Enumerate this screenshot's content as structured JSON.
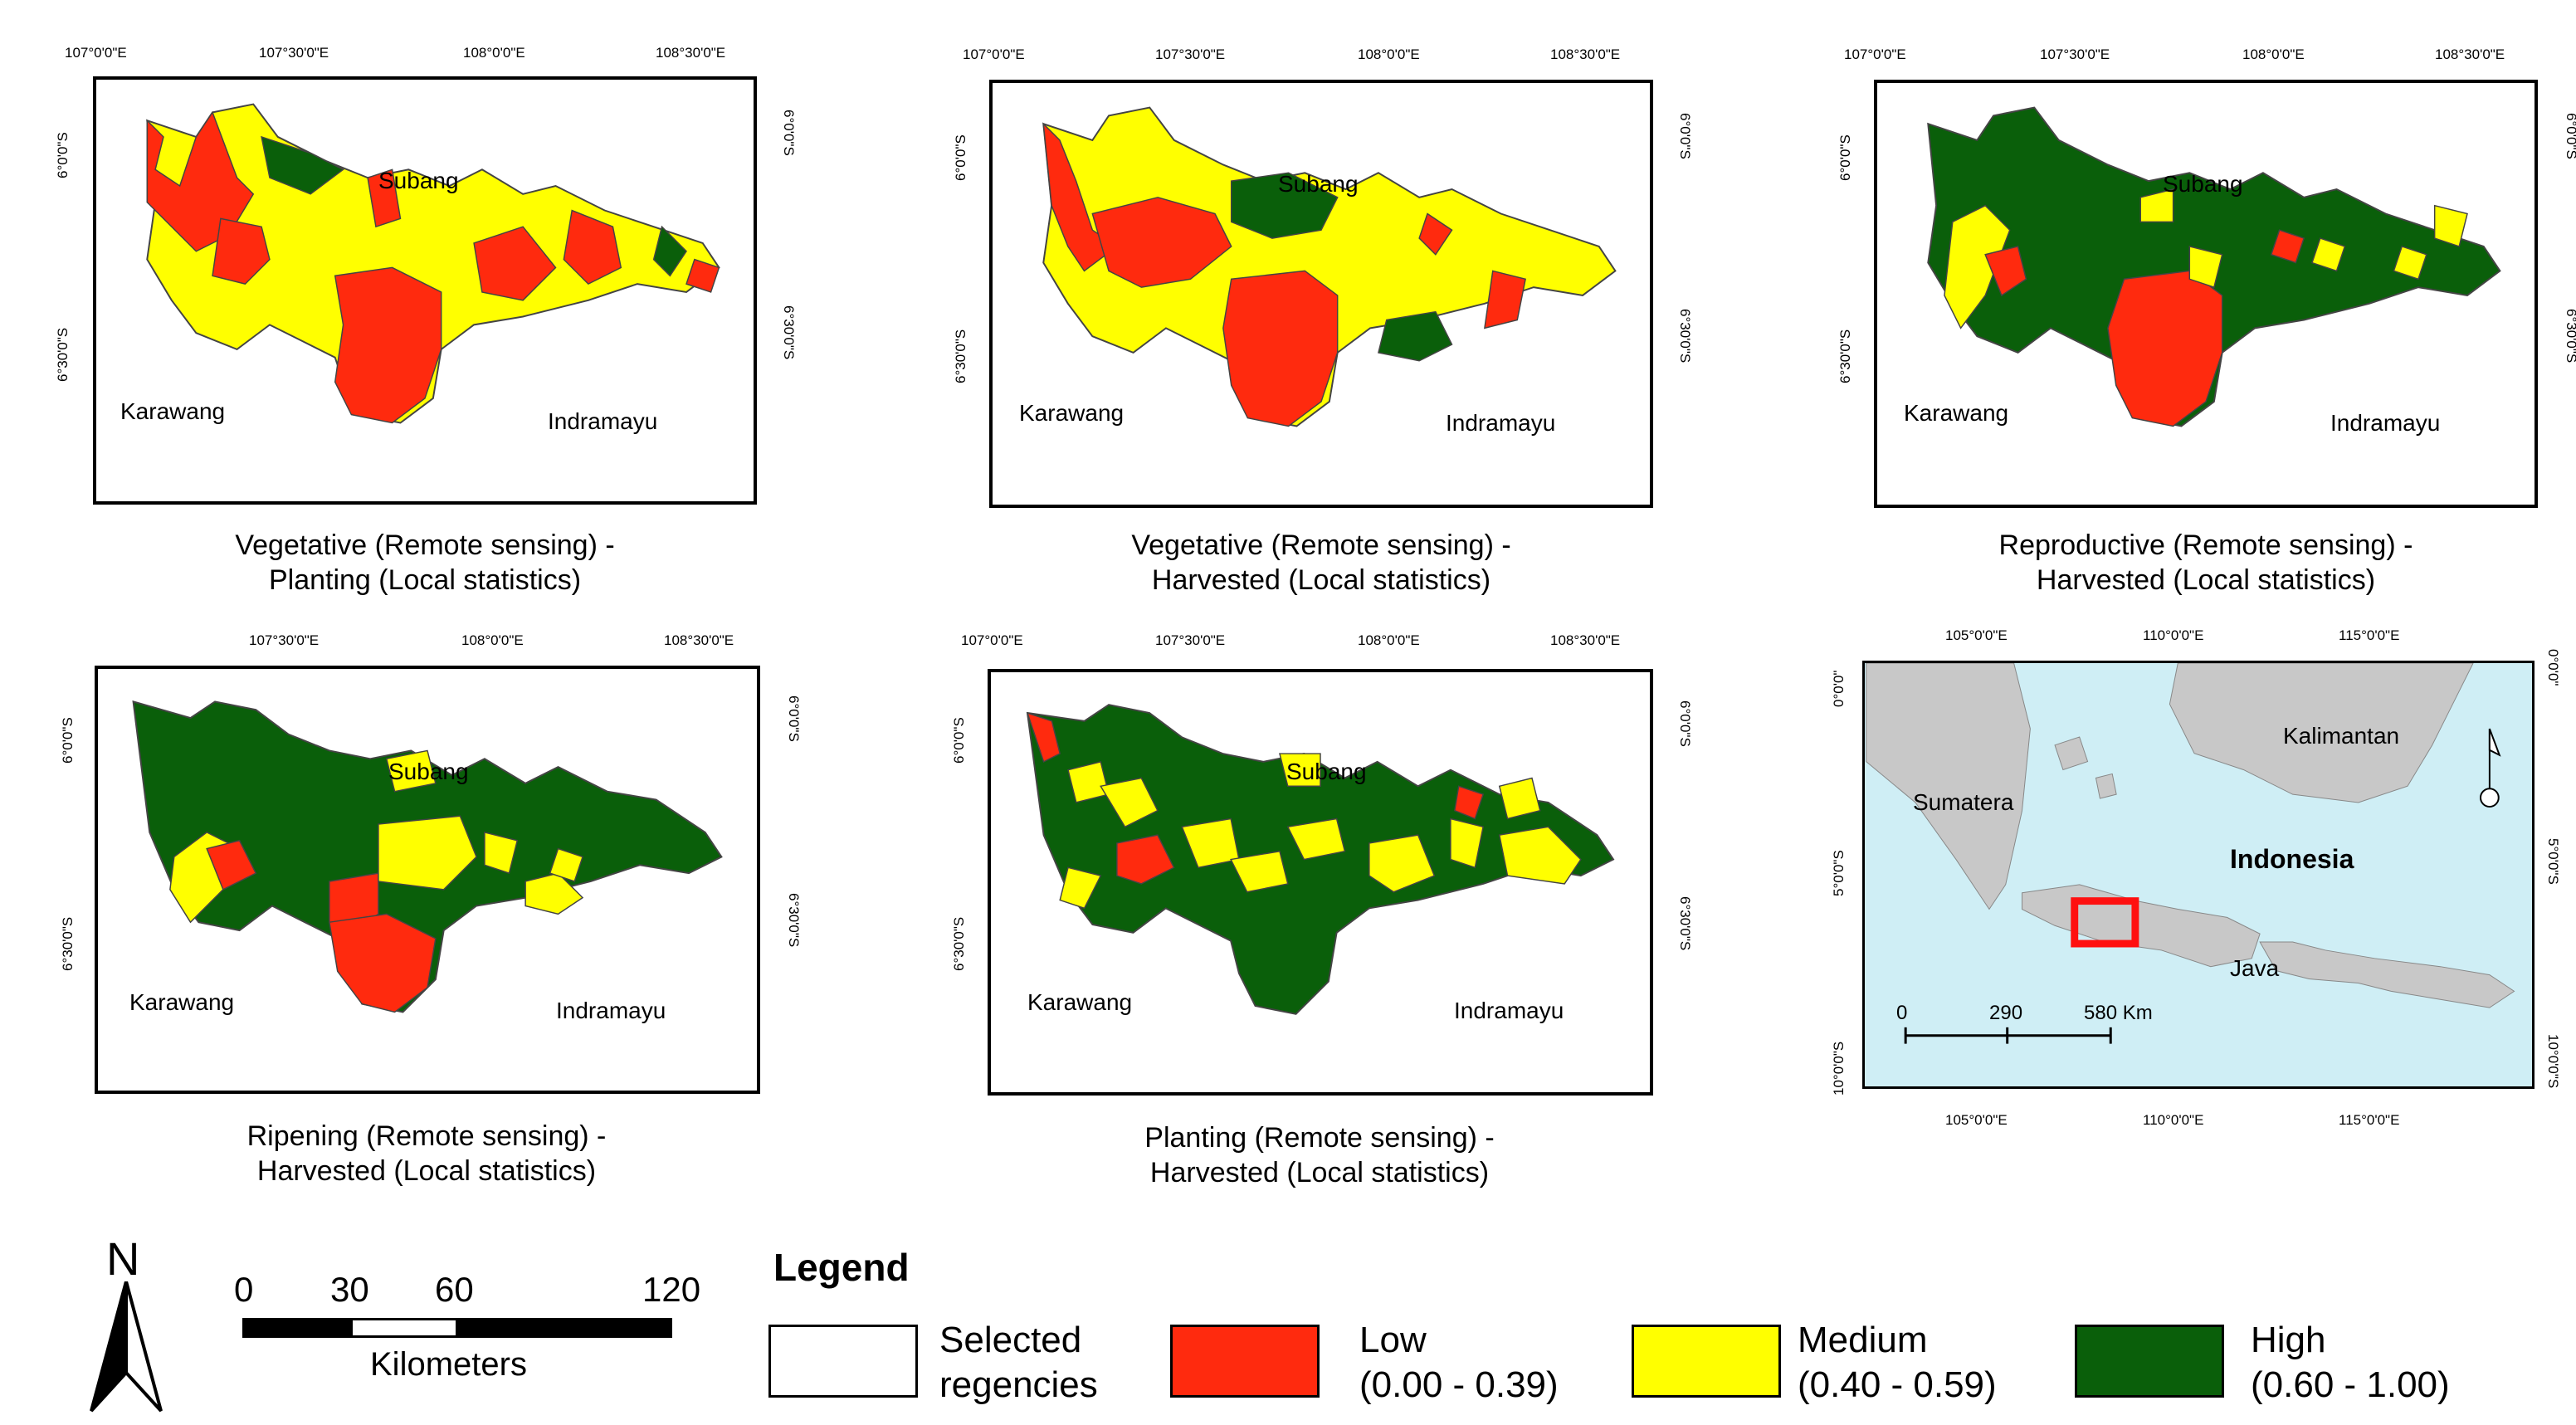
{
  "colors": {
    "low": "#ff2a0e",
    "medium": "#ffff00",
    "high": "#0a5f0a",
    "selected": "#ffffff",
    "sea": "#cfeef5",
    "land": "#c8c8c8"
  },
  "panels": [
    {
      "id": "p1",
      "caption_line1": "Vegetative (Remote sensing) -",
      "caption_line2": "Planting (Local statistics)",
      "top_ticks": [
        "107°0'0\"E",
        "107°30'0\"E",
        "108°0'0\"E",
        "108°30'0\"E"
      ],
      "left_ticks": [
        "6°0'0\"S",
        "6°30'0\"S"
      ],
      "right_ticks": [
        "6°0'0\"S",
        "6°30'0\"S"
      ],
      "labels": {
        "subang": "Subang",
        "karawang": "Karawang",
        "indramayu": "Indramayu"
      }
    },
    {
      "id": "p2",
      "caption_line1": "Vegetative (Remote sensing) -",
      "caption_line2": "Harvested (Local statistics)",
      "top_ticks": [
        "107°0'0\"E",
        "107°30'0\"E",
        "108°0'0\"E",
        "108°30'0\"E"
      ],
      "left_ticks": [
        "6°0'0\"S",
        "6°30'0\"S"
      ],
      "right_ticks": [
        "6°0'0\"S",
        "6°30'0\"S"
      ],
      "labels": {
        "subang": "Subang",
        "karawang": "Karawang",
        "indramayu": "Indramayu"
      }
    },
    {
      "id": "p3",
      "caption_line1": "Reproductive (Remote sensing) -",
      "caption_line2": "Harvested (Local statistics)",
      "top_ticks": [
        "107°0'0\"E",
        "107°30'0\"E",
        "108°0'0\"E",
        "108°30'0\"E"
      ],
      "left_ticks": [
        "6°0'0\"S",
        "6°30'0\"S"
      ],
      "right_ticks": [
        "6°0'0\"S",
        "6°30'0\"S"
      ],
      "labels": {
        "subang": "Subang",
        "karawang": "Karawang",
        "indramayu": "Indramayu"
      }
    },
    {
      "id": "p4",
      "caption_line1": "Ripening (Remote sensing) -",
      "caption_line2": "Harvested (Local statistics)",
      "top_ticks": [
        "107°30'0\"E",
        "108°0'0\"E",
        "108°30'0\"E"
      ],
      "left_ticks": [
        "6°0'0\"S",
        "6°30'0\"S"
      ],
      "right_ticks": [
        "6°0'0\"S",
        "6°30'0\"S"
      ],
      "labels": {
        "subang": "Subang",
        "karawang": "Karawang",
        "indramayu": "Indramayu"
      }
    },
    {
      "id": "p5",
      "caption_line1": "Planting (Remote sensing) -",
      "caption_line2": "Harvested (Local statistics)",
      "top_ticks": [
        "107°0'0\"E",
        "107°30'0\"E",
        "108°0'0\"E",
        "108°30'0\"E"
      ],
      "left_ticks": [
        "6°0'0\"S",
        "6°30'0\"S"
      ],
      "right_ticks": [
        "6°0'0\"S",
        "6°30'0\"S"
      ],
      "labels": {
        "subang": "Subang",
        "karawang": "Karawang",
        "indramayu": "Indramayu"
      }
    }
  ],
  "locator": {
    "top_ticks": [
      "105°0'0\"E",
      "110°0'0\"E",
      "115°0'0\"E"
    ],
    "bottom_ticks": [
      "105°0'0\"E",
      "110°0'0\"E",
      "115°0'0\"E"
    ],
    "left_ticks": [
      "0°0'0\"",
      "5°0'0\"S",
      "10°0'0\"S"
    ],
    "right_ticks": [
      "0°0'0\"",
      "5°0'0\"S",
      "10°0'0\"S"
    ],
    "kalimantan": "Kalimantan",
    "sumatera": "Sumatera",
    "indonesia": "Indonesia",
    "java": "Java",
    "scale_0": "0",
    "scale_290": "290",
    "scale_580": "580 Km"
  },
  "north_arrow": {
    "letter": "N"
  },
  "scalebar": {
    "n0": "0",
    "n30": "30",
    "n60": "60",
    "n120": "120",
    "unit": "Kilometers"
  },
  "legend": {
    "title": "Legend",
    "selected_1": "Selected",
    "selected_2": "regencies",
    "low_1": "Low",
    "low_2": "(0.00 - 0.39)",
    "medium_1": "Medium",
    "medium_2": "(0.40 - 0.59)",
    "high_1": "High",
    "high_2": "(0.60 - 1.00)"
  }
}
